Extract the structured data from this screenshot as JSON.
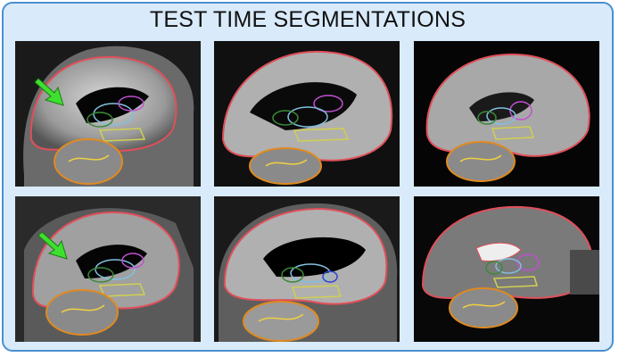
{
  "figure": {
    "title": "TEST TIME SEGMENTATIONS",
    "colors": {
      "frame_border": "#4a8fd0",
      "frame_fill": "#d9ebfa",
      "cortex_outline": "#e0505a",
      "cerebellum_outline": "#e08a20",
      "cerebellum_inner": "#f0d040",
      "thalamus_outline": "#3a8a3a",
      "putamen_outline": "#c050d0",
      "caudate_outline": "#80c0e0",
      "brainstem_outline": "#d0d050",
      "arrow": "#3ee030"
    },
    "panels": [
      {
        "row": 1,
        "col": 1,
        "arrow": "green-arrow"
      },
      {
        "row": 1,
        "col": 2,
        "arrow": ""
      },
      {
        "row": 1,
        "col": 3,
        "arrow": ""
      },
      {
        "row": 2,
        "col": 1,
        "arrow": "green-arrow"
      },
      {
        "row": 2,
        "col": 2,
        "arrow": ""
      },
      {
        "row": 2,
        "col": 3,
        "arrow": ""
      }
    ]
  }
}
